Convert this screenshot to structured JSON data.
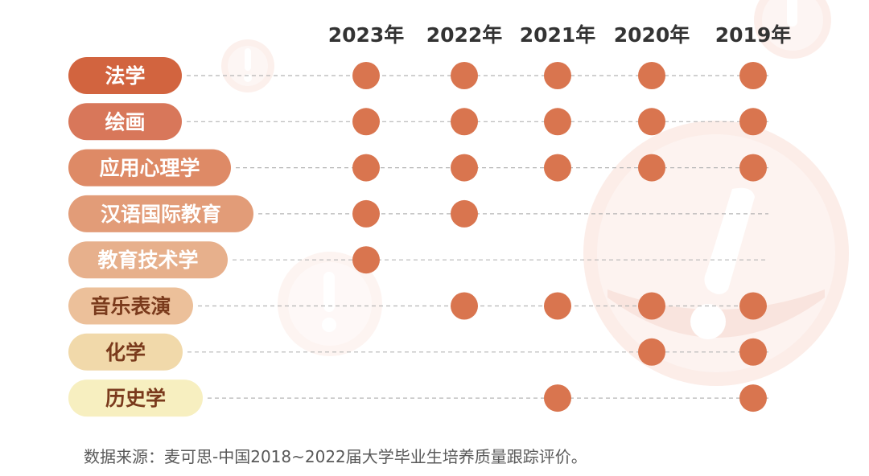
{
  "chart_data": {
    "type": "dot-matrix",
    "title": "",
    "years": [
      "2023年",
      "2022年",
      "2021年",
      "2020年",
      "2019年"
    ],
    "majors": [
      {
        "name": "法学",
        "years": [
          "2023年",
          "2022年",
          "2021年",
          "2020年",
          "2019年"
        ]
      },
      {
        "name": "绘画",
        "years": [
          "2023年",
          "2022年",
          "2021年",
          "2020年",
          "2019年"
        ]
      },
      {
        "name": "应用心理学",
        "years": [
          "2023年",
          "2022年",
          "2021年",
          "2020年",
          "2019年"
        ]
      },
      {
        "name": "汉语国际教育",
        "years": [
          "2023年",
          "2022年"
        ]
      },
      {
        "name": "教育技术学",
        "years": [
          "2023年"
        ]
      },
      {
        "name": "音乐表演",
        "years": [
          "2022年",
          "2021年",
          "2020年",
          "2019年"
        ]
      },
      {
        "name": "化学",
        "years": [
          "2020年",
          "2019年"
        ]
      },
      {
        "name": "历史学",
        "years": [
          "2021年",
          "2019年"
        ]
      }
    ]
  },
  "colors": {
    "dot": "#d9754f",
    "line": "#b5b5b5",
    "labels": [
      "#d2643f",
      "#d8775a",
      "#de8a66",
      "#e29c78",
      "#e7b08c",
      "#ecc09a",
      "#f1d9aa",
      "#f7efc0"
    ],
    "label_text": [
      "#ffffff",
      "#ffffff",
      "#ffffff",
      "#ffffff",
      "#ffffff",
      "#7a3a1c",
      "#7a3a1c",
      "#7a3a1c"
    ],
    "watermark": "#fbe4dd"
  },
  "source": "数据来源：麦可思-中国2018~2022届大学毕业生培养质量跟踪评价。"
}
